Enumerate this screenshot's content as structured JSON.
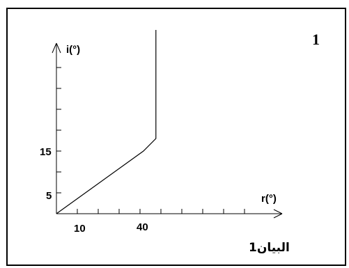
{
  "figure": {
    "number": "1",
    "caption": "البيان1"
  },
  "chart_data": {
    "type": "line",
    "xlabel": "r(°)",
    "ylabel": "i(°)",
    "x_tick_labels": [
      "10",
      "40"
    ],
    "y_tick_labels": [
      "5",
      "15"
    ],
    "series": [
      {
        "x": [
          0,
          35,
          40,
          40,
          40
        ],
        "y": [
          0,
          15,
          18,
          30,
          44
        ]
      }
    ]
  }
}
